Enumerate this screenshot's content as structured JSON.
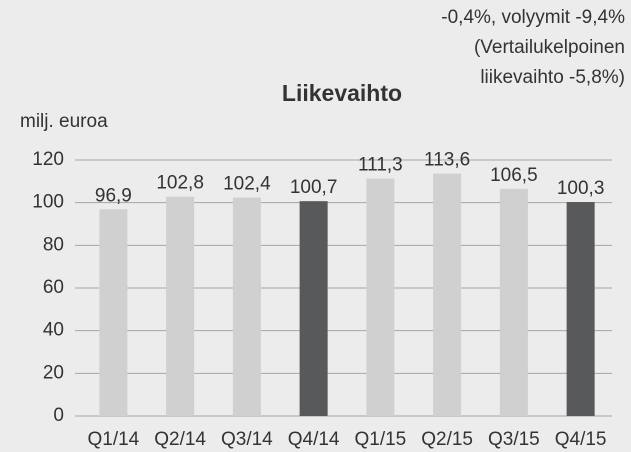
{
  "chart_data": {
    "type": "bar",
    "title": "Liikevaihto",
    "annotation": [
      "-0,4%, volyymit -9,4%",
      "(Vertailukelpoinen",
      "liikevaihto -5,8%)"
    ],
    "ylabel": "milj. euroa",
    "categories": [
      "Q1/14",
      "Q2/14",
      "Q3/14",
      "Q4/14",
      "Q1/15",
      "Q2/15",
      "Q3/15",
      "Q4/15"
    ],
    "values": [
      96.9,
      102.8,
      102.4,
      100.7,
      111.3,
      113.6,
      106.5,
      100.3
    ],
    "value_labels": [
      "96,9",
      "102,8",
      "102,4",
      "100,7",
      "111,3",
      "113,6",
      "106,5",
      "100,3"
    ],
    "colors": [
      "#d0d0d0",
      "#d0d0d0",
      "#d0d0d0",
      "#58595b",
      "#d0d0d0",
      "#d0d0d0",
      "#d0d0d0",
      "#58595b"
    ],
    "ylim": [
      0,
      120
    ],
    "yticks": [
      0,
      20,
      40,
      60,
      80,
      100,
      120
    ],
    "grid": true
  }
}
